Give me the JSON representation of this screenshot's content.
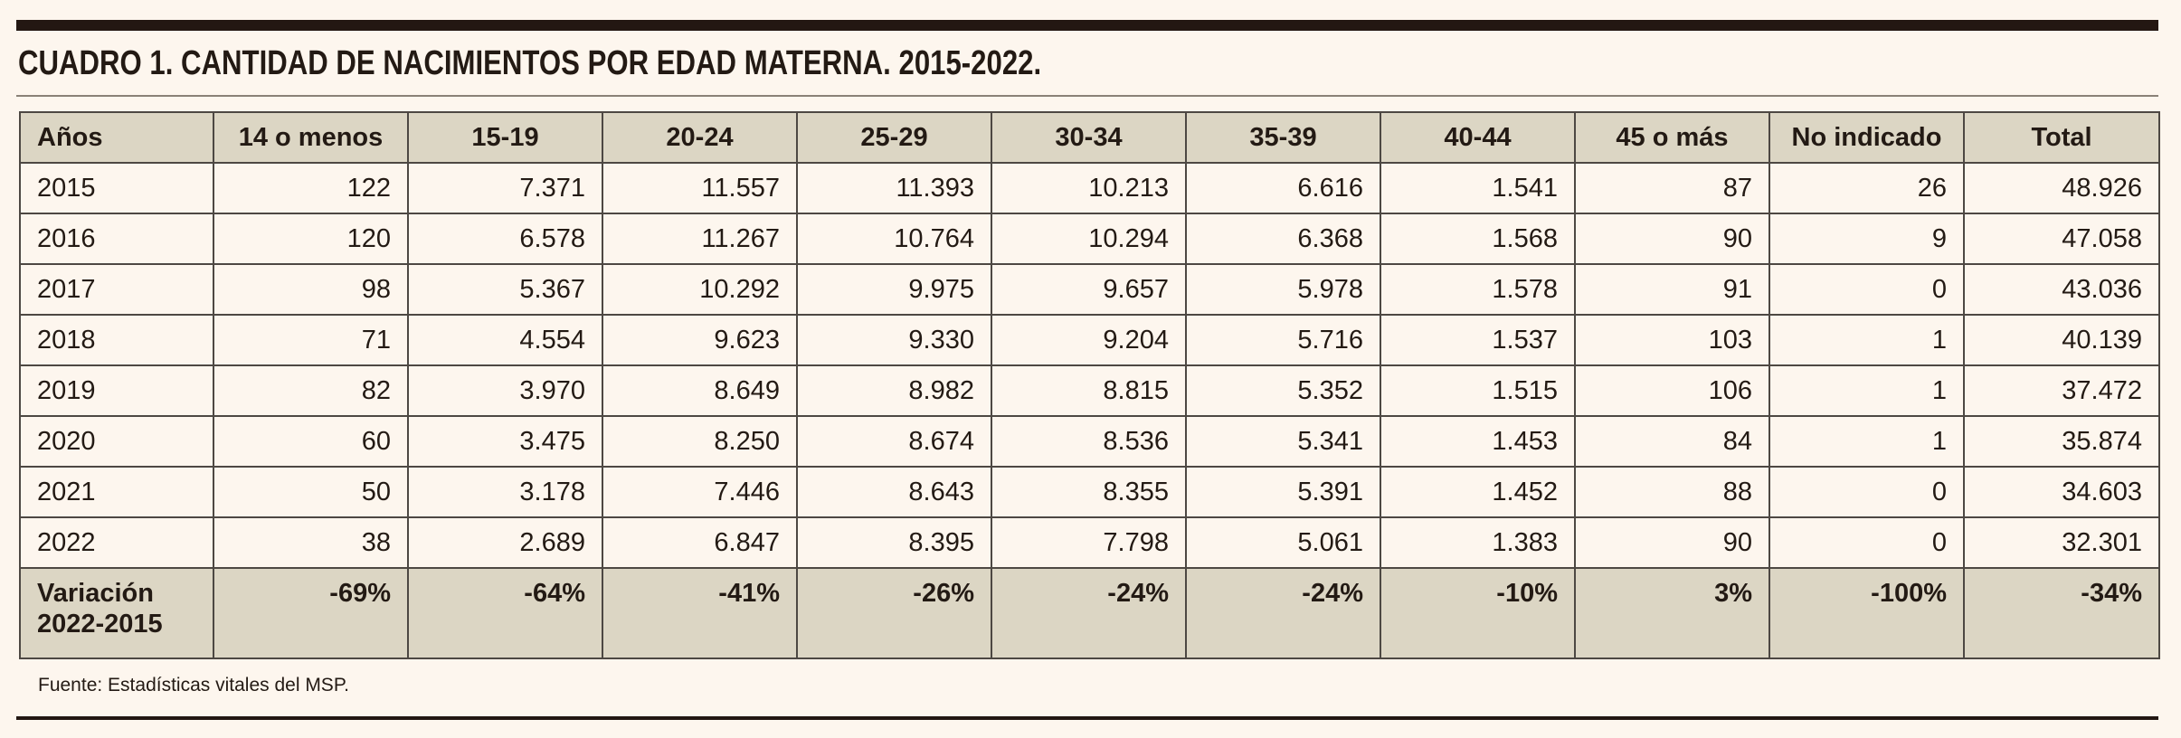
{
  "title": "CUADRO 1. CANTIDAD DE NACIMIENTOS POR EDAD MATERNA. 2015-2022.",
  "table": {
    "headers": [
      "Años",
      "14 o menos",
      "15-19",
      "20-24",
      "25-29",
      "30-34",
      "35-39",
      "40-44",
      "45 o más",
      "No indicado",
      "Total"
    ],
    "rows": [
      [
        "2015",
        "122",
        "7.371",
        "11.557",
        "11.393",
        "10.213",
        "6.616",
        "1.541",
        "87",
        "26",
        "48.926"
      ],
      [
        "2016",
        "120",
        "6.578",
        "11.267",
        "10.764",
        "10.294",
        "6.368",
        "1.568",
        "90",
        "9",
        "47.058"
      ],
      [
        "2017",
        "98",
        "5.367",
        "10.292",
        "9.975",
        "9.657",
        "5.978",
        "1.578",
        "91",
        "0",
        "43.036"
      ],
      [
        "2018",
        "71",
        "4.554",
        "9.623",
        "9.330",
        "9.204",
        "5.716",
        "1.537",
        "103",
        "1",
        "40.139"
      ],
      [
        "2019",
        "82",
        "3.970",
        "8.649",
        "8.982",
        "8.815",
        "5.352",
        "1.515",
        "106",
        "1",
        "37.472"
      ],
      [
        "2020",
        "60",
        "3.475",
        "8.250",
        "8.674",
        "8.536",
        "5.341",
        "1.453",
        "84",
        "1",
        "35.874"
      ],
      [
        "2021",
        "50",
        "3.178",
        "7.446",
        "8.643",
        "8.355",
        "5.391",
        "1.452",
        "88",
        "0",
        "34.603"
      ],
      [
        "2022",
        "38",
        "2.689",
        "6.847",
        "8.395",
        "7.798",
        "5.061",
        "1.383",
        "90",
        "0",
        "32.301"
      ]
    ],
    "footer": [
      "Variación 2022-2015",
      "-69%",
      "-64%",
      "-41%",
      "-26%",
      "-24%",
      "-24%",
      "-10%",
      "3%",
      "-100%",
      "-34%"
    ]
  },
  "source": "Fuente: Estadísticas vitales del MSP.",
  "colors": {
    "background": "#fdf6ee",
    "header_fill": "#dcd6c4",
    "rule": "#231712",
    "border": "#4d4843"
  }
}
